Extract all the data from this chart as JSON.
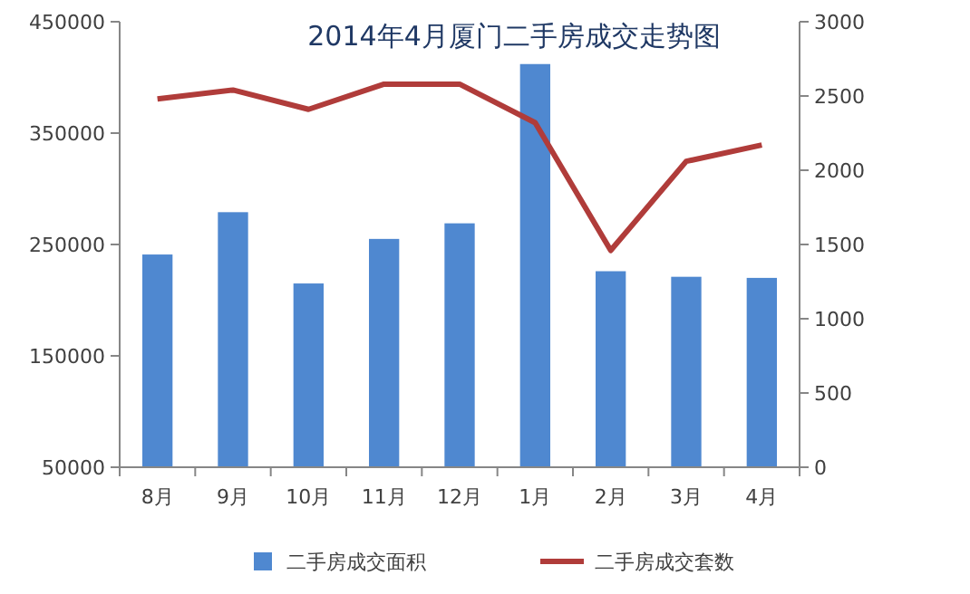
{
  "chart_data": {
    "type": "bar",
    "title": "2014年4月厦门二手房成交走势图",
    "categories": [
      "8月",
      "9月",
      "10月",
      "11月",
      "12月",
      "1月",
      "2月",
      "3月",
      "4月"
    ],
    "series": [
      {
        "name": "二手房成交面积",
        "color": "#4f88d0",
        "values": [
          241000,
          279000,
          215000,
          255000,
          269000,
          412000,
          226000,
          221000,
          220000
        ]
      },
      {
        "name": "二手房成交套数",
        "type": "line",
        "axis": "y2",
        "color": "#b03c3a",
        "values": [
          2480,
          2540,
          2410,
          2580,
          2580,
          2320,
          1460,
          2060,
          2170
        ]
      }
    ],
    "ylim": [
      50000,
      450000
    ],
    "yticks": [
      50000,
      150000,
      250000,
      350000,
      450000
    ],
    "y2lim": [
      0,
      3000
    ],
    "y2ticks": [
      0,
      500,
      1000,
      1500,
      2000,
      2500,
      3000
    ],
    "grid": false,
    "legend": "bottom",
    "marker": "none",
    "line_style": "solid"
  }
}
